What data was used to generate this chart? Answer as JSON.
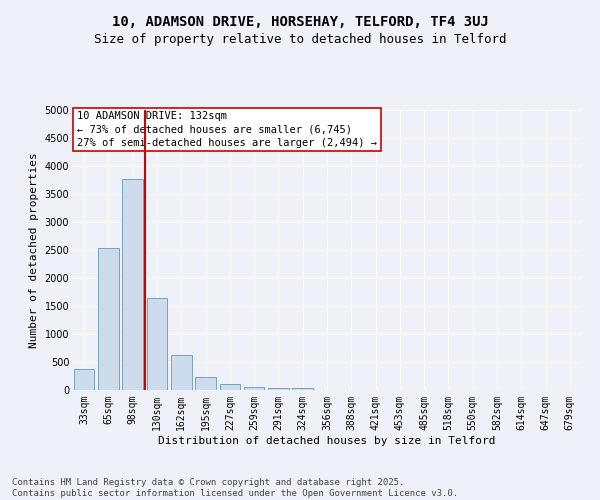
{
  "title_line1": "10, ADAMSON DRIVE, HORSEHAY, TELFORD, TF4 3UJ",
  "title_line2": "Size of property relative to detached houses in Telford",
  "xlabel": "Distribution of detached houses by size in Telford",
  "ylabel": "Number of detached properties",
  "categories": [
    "33sqm",
    "65sqm",
    "98sqm",
    "130sqm",
    "162sqm",
    "195sqm",
    "227sqm",
    "259sqm",
    "291sqm",
    "324sqm",
    "356sqm",
    "388sqm",
    "421sqm",
    "453sqm",
    "485sqm",
    "518sqm",
    "550sqm",
    "582sqm",
    "614sqm",
    "647sqm",
    "679sqm"
  ],
  "values": [
    380,
    2530,
    3760,
    1650,
    620,
    230,
    110,
    60,
    40,
    30,
    0,
    0,
    0,
    0,
    0,
    0,
    0,
    0,
    0,
    0,
    0
  ],
  "bar_color": "#ccdcec",
  "bar_edge_color": "#6699bb",
  "vline_color": "#cc0000",
  "vline_x_index": 3,
  "annotation_text": "10 ADAMSON DRIVE: 132sqm\n← 73% of detached houses are smaller (6,745)\n27% of semi-detached houses are larger (2,494) →",
  "annotation_box_facecolor": "#ffffff",
  "annotation_box_edgecolor": "#cc0000",
  "ylim": [
    0,
    5000
  ],
  "yticks": [
    0,
    500,
    1000,
    1500,
    2000,
    2500,
    3000,
    3500,
    4000,
    4500,
    5000
  ],
  "bg_color": "#eef2f8",
  "grid_color": "#ffffff",
  "footer_text": "Contains HM Land Registry data © Crown copyright and database right 2025.\nContains public sector information licensed under the Open Government Licence v3.0.",
  "title_fontsize": 10,
  "subtitle_fontsize": 9,
  "axis_label_fontsize": 8,
  "tick_fontsize": 7,
  "annotation_fontsize": 7.5,
  "footer_fontsize": 6.5
}
